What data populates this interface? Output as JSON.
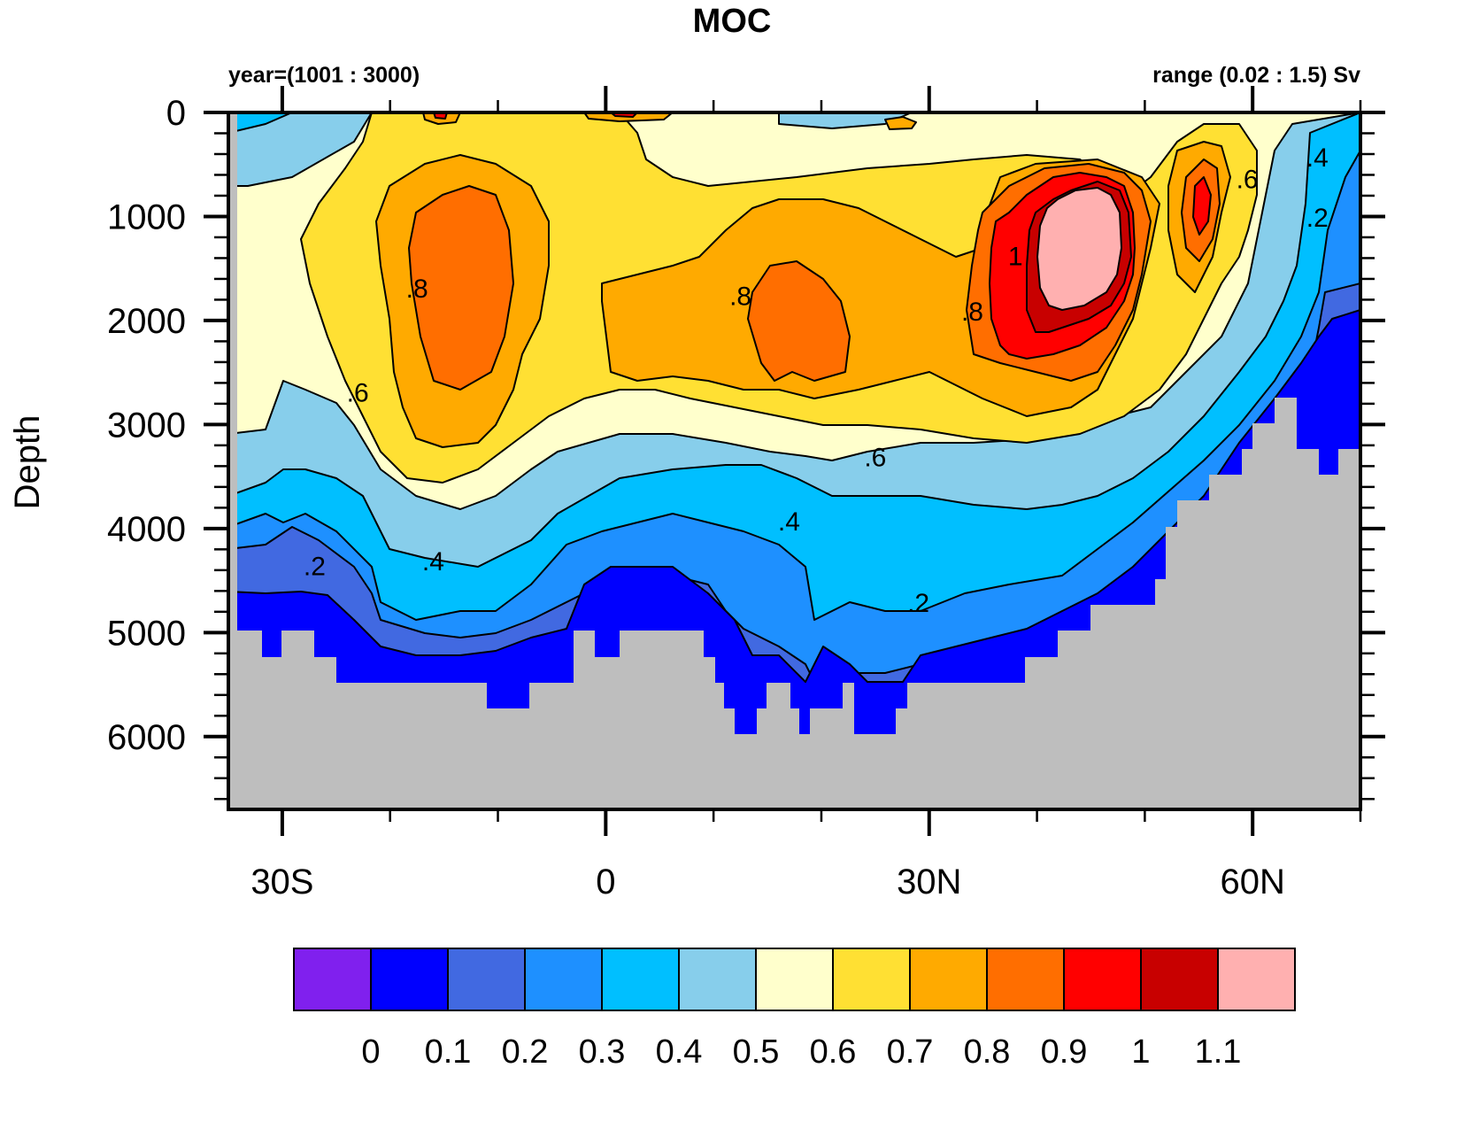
{
  "chart_data": {
    "type": "heatmap",
    "subtype": "filled-contour",
    "title": "MOC",
    "subtitle_left": "year=(1001 : 3000)",
    "subtitle_right": "range (0.02 : 1.5) Sv",
    "xlabel": "",
    "ylabel": "Depth",
    "xlim": [
      -35,
      70
    ],
    "ylim": [
      6700,
      0
    ],
    "x_ticks": [
      {
        "value": -30,
        "label": "30S"
      },
      {
        "value": 0,
        "label": "0"
      },
      {
        "value": 30,
        "label": "30N"
      },
      {
        "value": 60,
        "label": "60N"
      }
    ],
    "x_minor_step": 10,
    "y_ticks": [
      {
        "value": 0,
        "label": "0"
      },
      {
        "value": 1000,
        "label": "1000"
      },
      {
        "value": 2000,
        "label": "2000"
      },
      {
        "value": 3000,
        "label": "3000"
      },
      {
        "value": 4000,
        "label": "4000"
      },
      {
        "value": 5000,
        "label": "5000"
      },
      {
        "value": 6000,
        "label": "6000"
      }
    ],
    "y_minor_step": 200,
    "units": "Sv",
    "colorbar": {
      "levels": [
        "0",
        "0.1",
        "0.2",
        "0.3",
        "0.4",
        "0.5",
        "0.6",
        "0.7",
        "0.8",
        "0.9",
        "1",
        "1.1"
      ],
      "colors": [
        "#8020EE",
        "#0000FF",
        "#4169E1",
        "#1E90FF",
        "#00BFFF",
        "#87CEEB",
        "#FFFFCC",
        "#FFE033",
        "#FFAA00",
        "#FF6E00",
        "#FF0000",
        "#C80000",
        "#FFB0B0"
      ],
      "placement": "bottom"
    },
    "missing_color": "#BEBEBE",
    "contour_labels": [
      {
        "text": ".8",
        "lat": -17.5,
        "depth": 1780
      },
      {
        "text": ".6",
        "lat": -23,
        "depth": 2780
      },
      {
        "text": ".4",
        "lat": -16,
        "depth": 4400
      },
      {
        "text": ".2",
        "lat": -27,
        "depth": 4450
      },
      {
        "text": ".8",
        "lat": 12.5,
        "depth": 1850
      },
      {
        "text": ".6",
        "lat": 25,
        "depth": 3400
      },
      {
        "text": ".4",
        "lat": 17,
        "depth": 4020
      },
      {
        "text": ".2",
        "lat": 29,
        "depth": 4800
      },
      {
        "text": ".8",
        "lat": 34,
        "depth": 2000
      },
      {
        "text": "1",
        "lat": 38,
        "depth": 1470
      },
      {
        "text": ".6",
        "lat": 59.5,
        "depth": 730
      },
      {
        "text": ".4",
        "lat": 66,
        "depth": 520
      },
      {
        "text": ".2",
        "lat": 66,
        "depth": 1100
      }
    ],
    "regions": {
      "c05_surface_band": "0.5 Sv lobes near surface south and north",
      "c08_cell_south_max": "~0.85 Sv centered 15S, 1800 m",
      "c08_cell_equatorial": "~0.85 Sv centered 15N, 2000 m",
      "north_atlantic_max": ">1.1 Sv centered 42N, 1300 m",
      "subpolar_cell": "~0.95 Sv at 55N, 800 m"
    }
  }
}
